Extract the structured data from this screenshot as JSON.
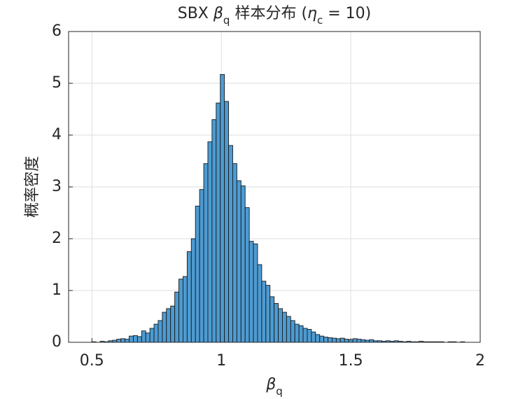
{
  "chart_data": {
    "type": "histogram",
    "title": [
      {
        "text": "SBX "
      },
      {
        "text": "β",
        "italic": true
      },
      {
        "text": "q",
        "sub": true
      },
      {
        "text": " 样本分布 ("
      },
      {
        "text": "η",
        "italic": true
      },
      {
        "text": "c",
        "sub": true
      },
      {
        "text": " = 10)"
      }
    ],
    "xlabel": [
      {
        "text": "β",
        "italic": true
      },
      {
        "text": "q",
        "sub": true
      }
    ],
    "ylabel": "概率密度",
    "bins": [
      0.5,
      0.516,
      0.532,
      0.548,
      0.564,
      0.58,
      0.596,
      0.612,
      0.628,
      0.644,
      0.66,
      0.676,
      0.692,
      0.708,
      0.724,
      0.74,
      0.756,
      0.772,
      0.788,
      0.804,
      0.82,
      0.836,
      0.852,
      0.868,
      0.884,
      0.9,
      0.916,
      0.932,
      0.948,
      0.964,
      0.98,
      0.996,
      1.012,
      1.028,
      1.044,
      1.06,
      1.076,
      1.092,
      1.108,
      1.124,
      1.14,
      1.156,
      1.172,
      1.188,
      1.204,
      1.22,
      1.236,
      1.252,
      1.268,
      1.284,
      1.3,
      1.316,
      1.332,
      1.348,
      1.364,
      1.38,
      1.396,
      1.412,
      1.428,
      1.444,
      1.46,
      1.476,
      1.492,
      1.508,
      1.524,
      1.54,
      1.556,
      1.572,
      1.588,
      1.604,
      1.62,
      1.636,
      1.652,
      1.668,
      1.684,
      1.7,
      1.716,
      1.732,
      1.748,
      1.764,
      1.78,
      1.796,
      1.812,
      1.828,
      1.844,
      1.86,
      1.876,
      1.892,
      1.908,
      1.924,
      1.94,
      1.956
    ],
    "values": [
      0.01,
      0,
      0.02,
      0.01,
      0.03,
      0.04,
      0.06,
      0.07,
      0.06,
      0.12,
      0.13,
      0.11,
      0.22,
      0.18,
      0.27,
      0.35,
      0.42,
      0.58,
      0.65,
      0.7,
      0.97,
      1.22,
      1.27,
      1.75,
      2.0,
      2.63,
      2.95,
      3.45,
      3.87,
      4.3,
      4.62,
      5.17,
      4.65,
      3.8,
      3.45,
      3.12,
      3.02,
      2.6,
      1.95,
      1.9,
      1.5,
      1.18,
      1.1,
      0.88,
      0.75,
      0.65,
      0.58,
      0.5,
      0.42,
      0.35,
      0.32,
      0.27,
      0.25,
      0.2,
      0.15,
      0.12,
      0.1,
      0.09,
      0.08,
      0.07,
      0.08,
      0.06,
      0.05,
      0.07,
      0.06,
      0.05,
      0.04,
      0.05,
      0.03,
      0.03,
      0.02,
      0.03,
      0.02,
      0.03,
      0.02,
      0.01,
      0.02,
      0.01,
      0.01,
      0.02,
      0.01,
      0.01,
      0.01,
      0.01,
      0.01,
      0,
      0.01,
      0.01,
      0,
      0.01,
      0
    ],
    "color": "#4d9bd2",
    "edgecolor": "#1a1a1a",
    "xlim": [
      0.41,
      2
    ],
    "ylim": [
      0,
      6
    ],
    "xticks": [
      0.5,
      1,
      1.5,
      2
    ],
    "yticks": [
      0,
      1,
      2,
      3,
      4,
      5,
      6
    ],
    "grid": true
  }
}
